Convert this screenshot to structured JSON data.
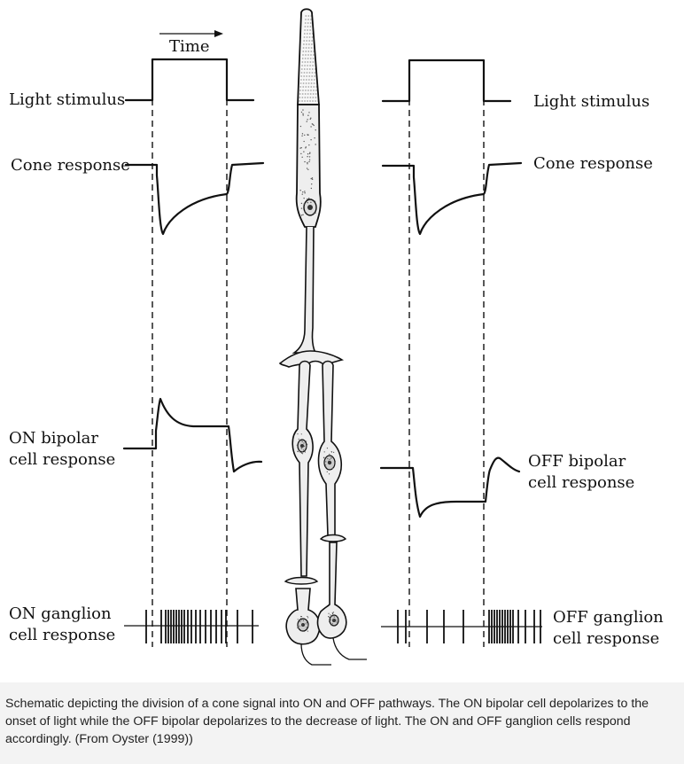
{
  "figure": {
    "time_label": "Time",
    "left": {
      "light_stimulus": "Light stimulus",
      "cone_response": "Cone response",
      "bipolar_line1": "ON bipolar",
      "bipolar_line2": "cell response",
      "ganglion_line1": "ON ganglion",
      "ganglion_line2": "cell response"
    },
    "right": {
      "light_stimulus": "Light stimulus",
      "cone_response": "Cone response",
      "bipolar_line1": "OFF bipolar",
      "bipolar_line2": "cell response",
      "ganglion_line1": "OFF ganglion",
      "ganglion_line2": "cell response"
    }
  },
  "caption": "Schematic depicting the division of a cone signal into ON and OFF pathways. The ON bipolar cell depolarizes to the onset of light while the OFF bipolar depolarizes to the decrease of light. The ON and OFF ganglion cells respond accordingly. (From Oyster (1999))"
}
